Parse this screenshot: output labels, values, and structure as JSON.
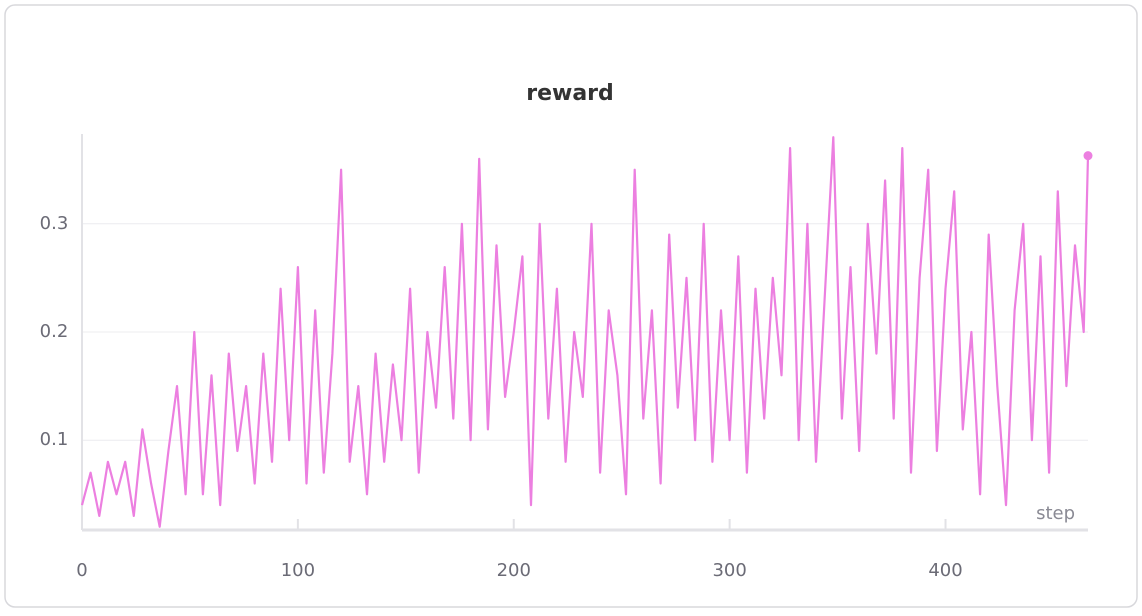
{
  "chart_data": {
    "type": "line",
    "title": "reward",
    "x_label": "step",
    "x": [
      0,
      4,
      8,
      12,
      16,
      20,
      24,
      28,
      32,
      36,
      40,
      44,
      48,
      52,
      56,
      60,
      64,
      68,
      72,
      76,
      80,
      84,
      88,
      92,
      96,
      100,
      104,
      108,
      112,
      116,
      120,
      124,
      128,
      132,
      136,
      140,
      144,
      148,
      152,
      156,
      160,
      164,
      168,
      172,
      176,
      180,
      184,
      188,
      192,
      196,
      200,
      204,
      208,
      212,
      216,
      220,
      224,
      228,
      232,
      236,
      240,
      244,
      248,
      252,
      256,
      260,
      264,
      268,
      272,
      276,
      280,
      284,
      288,
      292,
      296,
      300,
      304,
      308,
      312,
      316,
      320,
      324,
      328,
      332,
      336,
      340,
      344,
      348,
      352,
      356,
      360,
      364,
      368,
      372,
      376,
      380,
      384,
      388,
      392,
      396,
      400,
      404,
      408,
      412,
      416,
      420,
      424,
      428,
      432,
      436,
      440,
      444,
      448,
      452,
      456,
      460,
      464,
      466
    ],
    "values": [
      0.04,
      0.07,
      0.03,
      0.08,
      0.05,
      0.08,
      0.03,
      0.11,
      0.06,
      0.02,
      0.09,
      0.15,
      0.05,
      0.2,
      0.05,
      0.16,
      0.04,
      0.18,
      0.09,
      0.15,
      0.06,
      0.18,
      0.08,
      0.24,
      0.1,
      0.26,
      0.06,
      0.22,
      0.07,
      0.18,
      0.35,
      0.08,
      0.15,
      0.05,
      0.18,
      0.08,
      0.17,
      0.1,
      0.24,
      0.07,
      0.2,
      0.13,
      0.26,
      0.12,
      0.3,
      0.1,
      0.36,
      0.11,
      0.28,
      0.14,
      0.2,
      0.27,
      0.04,
      0.3,
      0.12,
      0.24,
      0.08,
      0.2,
      0.14,
      0.3,
      0.07,
      0.22,
      0.16,
      0.05,
      0.35,
      0.12,
      0.22,
      0.06,
      0.29,
      0.13,
      0.25,
      0.1,
      0.3,
      0.08,
      0.22,
      0.1,
      0.27,
      0.07,
      0.24,
      0.12,
      0.25,
      0.16,
      0.37,
      0.1,
      0.3,
      0.08,
      0.23,
      0.38,
      0.12,
      0.26,
      0.09,
      0.3,
      0.18,
      0.34,
      0.12,
      0.37,
      0.07,
      0.25,
      0.35,
      0.09,
      0.24,
      0.33,
      0.11,
      0.2,
      0.05,
      0.29,
      0.15,
      0.04,
      0.22,
      0.3,
      0.1,
      0.27,
      0.07,
      0.33,
      0.15,
      0.28,
      0.2,
      0.363
    ],
    "color": "#ec7fe0",
    "end_marker": true,
    "xlim": [
      0,
      466
    ],
    "ylim": [
      0.017,
      0.383
    ],
    "xticks": [
      0,
      100,
      200,
      300,
      400
    ],
    "yticks": [
      0.1,
      0.2,
      0.3
    ],
    "grid": true
  }
}
